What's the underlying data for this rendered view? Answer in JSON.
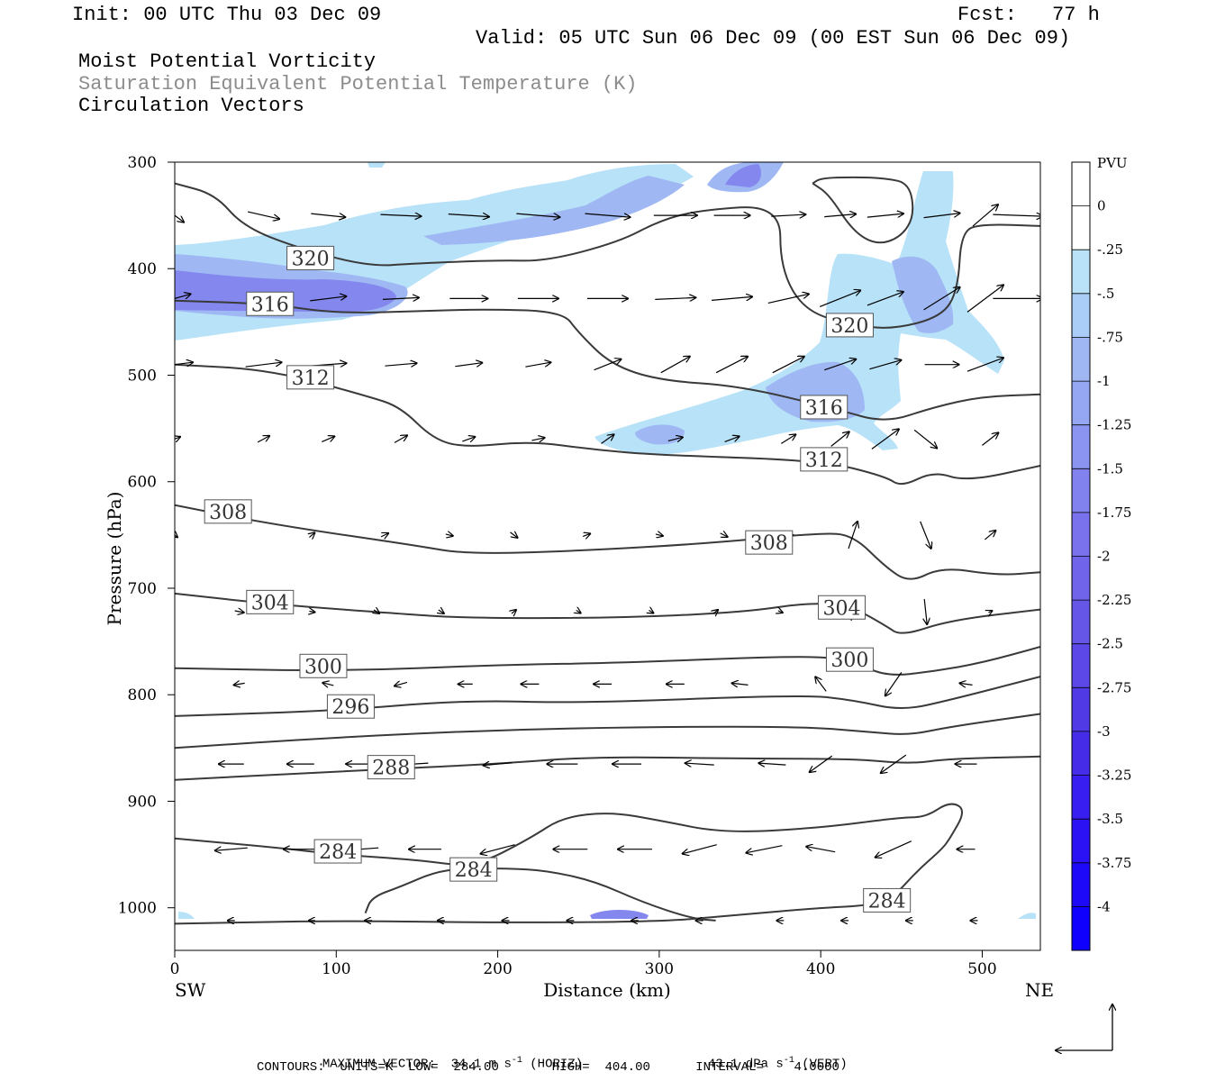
{
  "header": {
    "init": "Init: 00 UTC Thu 03 Dec 09",
    "fcst_label": "Fcst:",
    "fcst_value": "77 h",
    "valid": "Valid: 05 UTC Sun 06 Dec 09 (00 EST Sun 06 Dec 09)",
    "field1": "Moist Potential Vorticity",
    "field2": "Saturation Equivalent Potential Temperature (K)",
    "field3": "Circulation Vectors"
  },
  "footer": {
    "max_vector": "MAXIMUM VECTOR:  34.1 m s",
    "max_vector_unit_exp": "-1",
    "max_vector_horiz": " (HORIZ)",
    "max_vector_vert": "43.1 dPa s",
    "max_vector_vert_exp": "-1",
    "max_vector_vert_tag": " (VERT)",
    "contours": "CONTOURS:  UNITS=K  LOW=  284.00       HIGH=  404.00      INTERVAL=    4.0000"
  },
  "colors": {
    "contour": "#3a3a3a",
    "shade_light": "#b8e2f8",
    "shade_mid": "#9fb8f4",
    "shade_dark": "#8488ee",
    "shade_darker": "#6e6ae6"
  },
  "chart_data": {
    "type": "cross-section",
    "xlabel": "Distance (km)",
    "ylabel": "Pressure (hPa)",
    "x_left_label": "SW",
    "x_right_label": "NE",
    "xlim": [
      0,
      536
    ],
    "ylim": [
      1040,
      300
    ],
    "x_ticks": [
      0,
      100,
      200,
      300,
      400,
      500
    ],
    "y_ticks": [
      300,
      400,
      500,
      600,
      700,
      800,
      900,
      1000
    ],
    "colorbar": {
      "unit": "PVU",
      "labels": [
        "0",
        "-.25",
        "-.5",
        "-.75",
        "-1",
        "-1.25",
        "-1.5",
        "-1.75",
        "-2",
        "-2.25",
        "-2.5",
        "-2.75",
        "-3",
        "-3.25",
        "-3.5",
        "-3.75",
        "-4"
      ],
      "colors": [
        "#ffffff",
        "#ffffff",
        "#b9e2f9",
        "#a9cdf6",
        "#9fb8f4",
        "#95a6f2",
        "#8b94f0",
        "#8282ee",
        "#7a72ec",
        "#7064ea",
        "#6656e8",
        "#5c48e6",
        "#503ae6",
        "#442ce8",
        "#381ef0",
        "#2a12f4",
        "#1e08f8",
        "#0e00fc"
      ]
    },
    "contour_labels": [
      {
        "value": "320",
        "x": 84,
        "p": 390
      },
      {
        "value": "316",
        "x": 59,
        "p": 433
      },
      {
        "value": "312",
        "x": 84,
        "p": 502
      },
      {
        "value": "320",
        "x": 418,
        "p": 453
      },
      {
        "value": "316",
        "x": 402,
        "p": 530
      },
      {
        "value": "312",
        "x": 402,
        "p": 579
      },
      {
        "value": "308",
        "x": 33,
        "p": 628
      },
      {
        "value": "308",
        "x": 368,
        "p": 657
      },
      {
        "value": "304",
        "x": 59,
        "p": 713
      },
      {
        "value": "304",
        "x": 413,
        "p": 718
      },
      {
        "value": "300",
        "x": 92,
        "p": 773
      },
      {
        "value": "300",
        "x": 418,
        "p": 767
      },
      {
        "value": "296",
        "x": 109,
        "p": 811
      },
      {
        "value": "288",
        "x": 134,
        "p": 868
      },
      {
        "value": "284",
        "x": 101,
        "p": 947
      },
      {
        "value": "284",
        "x": 185,
        "p": 964
      },
      {
        "value": "284",
        "x": 441,
        "p": 993
      }
    ],
    "contours": [
      {
        "level": 320,
        "points": [
          [
            0,
            320
          ],
          [
            25,
            330
          ],
          [
            42,
            360
          ],
          [
            75,
            380
          ],
          [
            120,
            398
          ],
          [
            150,
            395
          ],
          [
            200,
            392
          ],
          [
            230,
            393
          ],
          [
            275,
            375
          ],
          [
            300,
            355
          ],
          [
            325,
            345
          ],
          [
            375,
            340
          ],
          [
            375,
            400
          ],
          [
            390,
            440
          ],
          [
            420,
            453
          ],
          [
            445,
            457
          ],
          [
            475,
            445
          ],
          [
            485,
            420
          ],
          [
            487,
            365
          ],
          [
            500,
            358
          ],
          [
            536,
            360
          ]
        ]
      },
      {
        "level": 316,
        "points": [
          [
            0,
            430
          ],
          [
            59,
            433
          ],
          [
            100,
            442
          ],
          [
            150,
            440
          ],
          [
            190,
            438
          ],
          [
            240,
            440
          ],
          [
            250,
            460
          ],
          [
            270,
            490
          ],
          [
            300,
            505
          ],
          [
            350,
            510
          ],
          [
            410,
            532
          ],
          [
            440,
            545
          ],
          [
            470,
            530
          ],
          [
            500,
            520
          ],
          [
            536,
            518
          ]
        ]
      },
      {
        "level": 312,
        "points": [
          [
            0,
            490
          ],
          [
            60,
            495
          ],
          [
            120,
            520
          ],
          [
            140,
            530
          ],
          [
            160,
            560
          ],
          [
            180,
            568
          ],
          [
            220,
            562
          ],
          [
            260,
            570
          ],
          [
            300,
            575
          ],
          [
            400,
            580
          ],
          [
            440,
            595
          ],
          [
            450,
            605
          ],
          [
            470,
            590
          ],
          [
            490,
            600
          ],
          [
            536,
            585
          ]
        ]
      },
      {
        "level": 308,
        "points": [
          [
            0,
            622
          ],
          [
            60,
            640
          ],
          [
            150,
            660
          ],
          [
            180,
            668
          ],
          [
            250,
            665
          ],
          [
            330,
            658
          ],
          [
            400,
            648
          ],
          [
            420,
            650
          ],
          [
            440,
            680
          ],
          [
            455,
            695
          ],
          [
            475,
            680
          ],
          [
            510,
            688
          ],
          [
            536,
            685
          ]
        ]
      },
      {
        "level": 304,
        "points": [
          [
            0,
            705
          ],
          [
            60,
            715
          ],
          [
            140,
            724
          ],
          [
            180,
            728
          ],
          [
            270,
            728
          ],
          [
            350,
            723
          ],
          [
            395,
            713
          ],
          [
            420,
            718
          ],
          [
            440,
            735
          ],
          [
            450,
            745
          ],
          [
            480,
            730
          ],
          [
            536,
            720
          ]
        ]
      },
      {
        "level": 300,
        "points": [
          [
            0,
            775
          ],
          [
            100,
            778
          ],
          [
            200,
            772
          ],
          [
            280,
            770
          ],
          [
            390,
            763
          ],
          [
            420,
            768
          ],
          [
            440,
            783
          ],
          [
            470,
            778
          ],
          [
            500,
            770
          ],
          [
            536,
            755
          ]
        ]
      },
      {
        "level": 296,
        "points": [
          [
            0,
            820
          ],
          [
            100,
            815
          ],
          [
            180,
            805
          ],
          [
            250,
            808
          ],
          [
            390,
            800
          ],
          [
            420,
            805
          ],
          [
            450,
            815
          ],
          [
            480,
            805
          ],
          [
            536,
            783
          ]
        ]
      },
      {
        "level": 292,
        "points": [
          [
            0,
            850
          ],
          [
            100,
            840
          ],
          [
            200,
            833
          ],
          [
            300,
            830
          ],
          [
            390,
            830
          ],
          [
            430,
            835
          ],
          [
            455,
            838
          ],
          [
            480,
            830
          ],
          [
            536,
            818
          ]
        ]
      },
      {
        "level": 288,
        "points": [
          [
            0,
            880
          ],
          [
            100,
            872
          ],
          [
            200,
            865
          ],
          [
            260,
            858
          ],
          [
            350,
            860
          ],
          [
            420,
            860
          ],
          [
            455,
            865
          ],
          [
            480,
            860
          ],
          [
            536,
            858
          ]
        ]
      },
      {
        "level": 284,
        "points": [
          [
            0,
            935
          ],
          [
            60,
            943
          ],
          [
            100,
            950
          ],
          [
            150,
            955
          ],
          [
            185,
            962
          ],
          [
            220,
            935
          ],
          [
            240,
            915
          ],
          [
            270,
            910
          ],
          [
            300,
            918
          ],
          [
            340,
            930
          ],
          [
            400,
            925
          ],
          [
            450,
            915
          ],
          [
            465,
            915
          ],
          [
            480,
            900
          ],
          [
            490,
            908
          ],
          [
            480,
            935
          ],
          [
            475,
            945
          ],
          [
            460,
            965
          ],
          [
            445,
            990
          ],
          [
            430,
            998
          ],
          [
            400,
            1000
          ],
          [
            340,
            1008
          ],
          [
            300,
            1013
          ],
          [
            200,
            1014
          ],
          [
            100,
            1012
          ],
          [
            0,
            1015
          ]
        ]
      },
      {
        "level": 284,
        "points": [
          [
            118,
            1005
          ],
          [
            122,
            990
          ],
          [
            140,
            980
          ],
          [
            160,
            967
          ],
          [
            178,
            963
          ],
          [
            205,
            963
          ],
          [
            230,
            965
          ],
          [
            260,
            975
          ],
          [
            290,
            995
          ],
          [
            320,
            1010
          ],
          [
            335,
            1012
          ]
        ]
      },
      {
        "level": 320,
        "points": [
          [
            395,
            320
          ],
          [
            405,
            330
          ],
          [
            420,
            365
          ],
          [
            435,
            378
          ],
          [
            450,
            370
          ],
          [
            458,
            350
          ],
          [
            455,
            320
          ],
          [
            440,
            315
          ],
          [
            420,
            314
          ],
          [
            400,
            315
          ],
          [
            395,
            320
          ]
        ]
      }
    ]
  }
}
